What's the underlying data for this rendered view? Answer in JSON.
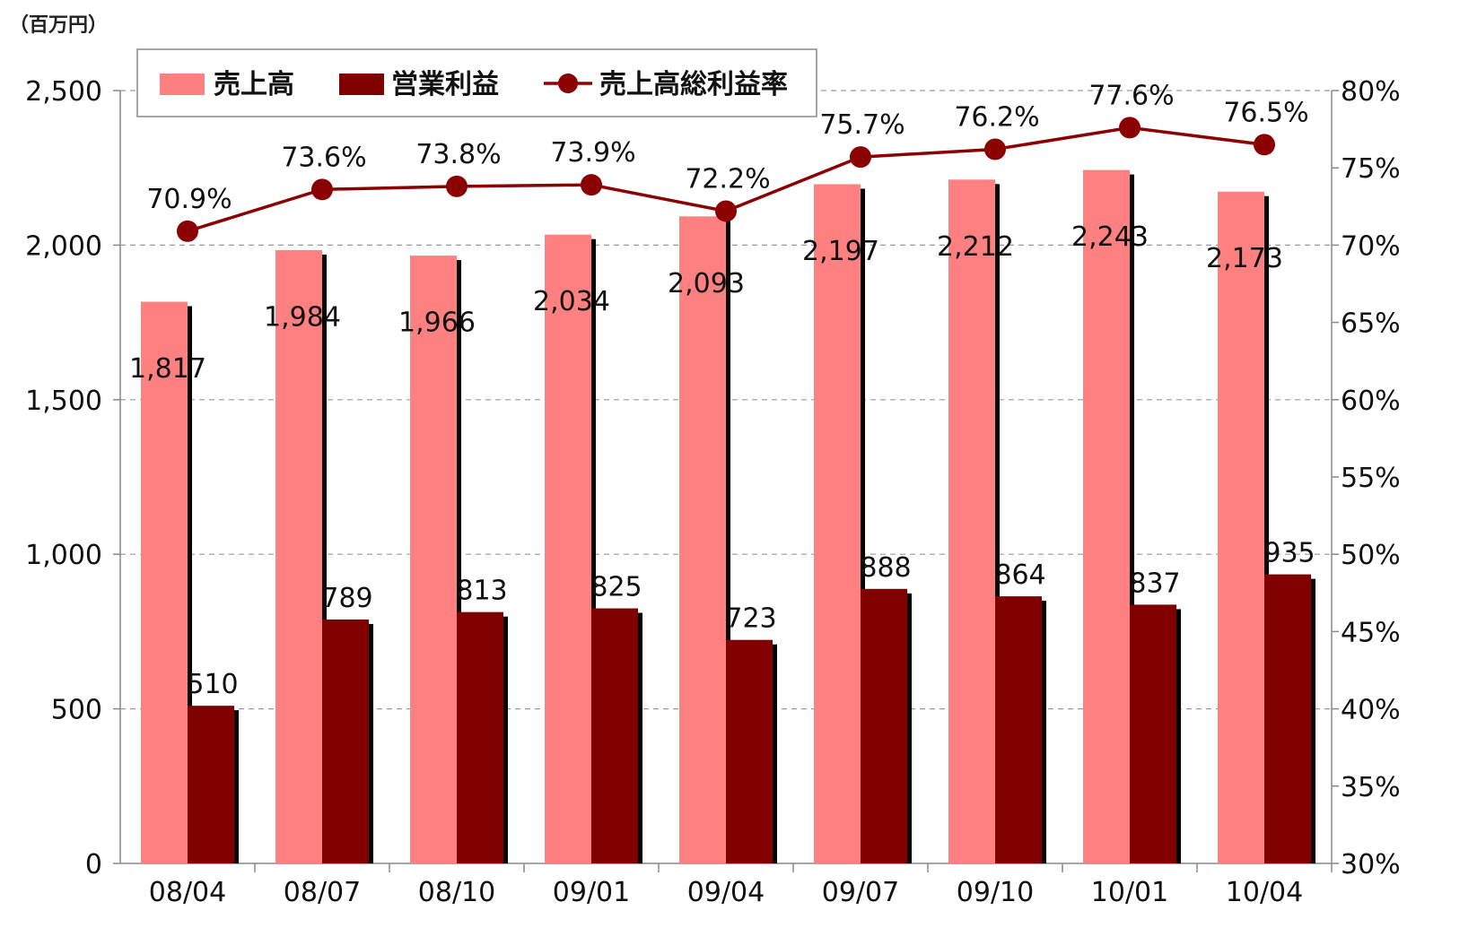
{
  "unit_label": "（百万円）",
  "colors": {
    "sales": "#ff8080",
    "operating_profit": "#800000",
    "shadow": "#000000",
    "line": "#8b0000",
    "grid": "#9a9a9a"
  },
  "chart_data": {
    "type": "bar",
    "categories": [
      "08/04",
      "08/07",
      "08/10",
      "09/01",
      "09/04",
      "09/07",
      "09/10",
      "10/01",
      "10/04"
    ],
    "series": [
      {
        "name": "売上高",
        "type": "bar",
        "axis": "left",
        "values": [
          1817,
          1984,
          1966,
          2034,
          2093,
          2197,
          2212,
          2243,
          2173
        ],
        "labels": [
          "1,817",
          "1,984",
          "1,966",
          "2,034",
          "2,093",
          "2,197",
          "2,212",
          "2,243",
          "2,173"
        ]
      },
      {
        "name": "営業利益",
        "type": "bar",
        "axis": "left",
        "values": [
          510,
          789,
          813,
          825,
          723,
          888,
          864,
          837,
          935
        ],
        "labels": [
          "510",
          "789",
          "813",
          "825",
          "723",
          "888",
          "864",
          "837",
          "935"
        ]
      },
      {
        "name": "売上高総利益率",
        "type": "line",
        "axis": "right",
        "values": [
          70.9,
          73.6,
          73.8,
          73.9,
          72.2,
          75.7,
          76.2,
          77.6,
          76.5
        ],
        "labels": [
          "70.9%",
          "73.6%",
          "73.8%",
          "73.9%",
          "72.2%",
          "75.7%",
          "76.2%",
          "77.6%",
          "76.5%"
        ]
      }
    ],
    "y_left": {
      "min": 0,
      "max": 2500,
      "step": 500,
      "tick_labels": [
        "0",
        "500",
        "1,000",
        "1,500",
        "2,000",
        "2,500"
      ]
    },
    "y_right": {
      "min": 30,
      "max": 80,
      "step": 5,
      "tick_labels": [
        "30%",
        "35%",
        "40%",
        "45%",
        "50%",
        "55%",
        "60%",
        "65%",
        "70%",
        "75%",
        "80%"
      ]
    },
    "grid": true,
    "legend_position": "top-left"
  }
}
